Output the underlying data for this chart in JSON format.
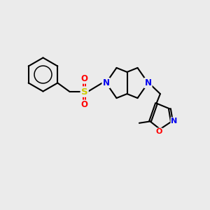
{
  "background_color": "#ebebeb",
  "fig_size": [
    3.0,
    3.0
  ],
  "dpi": 100,
  "bond_color": "#000000",
  "bond_width": 1.5,
  "atom_colors": {
    "N": "#0000ee",
    "O_red": "#ff0000",
    "S": "#cccc00",
    "C": "#000000"
  },
  "font_size_atom": 8.5,
  "xlim": [
    0,
    10
  ],
  "ylim": [
    0,
    10
  ]
}
